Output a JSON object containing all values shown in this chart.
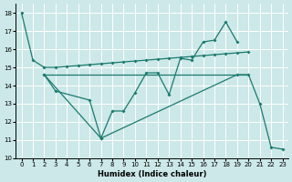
{
  "xlabel": "Humidex (Indice chaleur)",
  "xlim": [
    -0.5,
    23.5
  ],
  "ylim": [
    10,
    18.5
  ],
  "yticks": [
    10,
    11,
    12,
    13,
    14,
    15,
    16,
    17,
    18
  ],
  "xticks": [
    0,
    1,
    2,
    3,
    4,
    5,
    6,
    7,
    8,
    9,
    10,
    11,
    12,
    13,
    14,
    15,
    16,
    17,
    18,
    19,
    20,
    21,
    22,
    23
  ],
  "background_color": "#cce8e8",
  "grid_color": "#ffffff",
  "line_color": "#1a7a6e",
  "line1_x": [
    0,
    1,
    2,
    3,
    4,
    5,
    6,
    7,
    8,
    9,
    10,
    11,
    12,
    13,
    14,
    15,
    16,
    17,
    18,
    19,
    20
  ],
  "line1_y": [
    18.0,
    15.4,
    15.0,
    15.0,
    15.05,
    15.1,
    15.15,
    15.2,
    15.25,
    15.3,
    15.35,
    15.4,
    15.45,
    15.5,
    15.55,
    15.6,
    15.65,
    15.7,
    15.75,
    15.8,
    15.85
  ],
  "line2_x": [
    2,
    3,
    4,
    5,
    6,
    7,
    8,
    9,
    10,
    11,
    12,
    13,
    14,
    15,
    16,
    17,
    18,
    19,
    20
  ],
  "line2_y": [
    14.6,
    14.6,
    14.6,
    14.6,
    14.6,
    14.6,
    14.6,
    14.6,
    14.6,
    14.6,
    14.6,
    14.6,
    14.6,
    14.6,
    14.6,
    14.6,
    14.6,
    14.6,
    14.6
  ],
  "line3_x": [
    2,
    3,
    6,
    7,
    8,
    9,
    10,
    11,
    12,
    13,
    14,
    15,
    16,
    17,
    18,
    19
  ],
  "line3_y": [
    14.6,
    13.7,
    13.2,
    11.1,
    12.6,
    12.6,
    13.6,
    14.7,
    14.7,
    13.5,
    15.5,
    15.4,
    16.4,
    16.5,
    17.5,
    16.4
  ],
  "line4_x": [
    2,
    7,
    19,
    20,
    21,
    22,
    23
  ],
  "line4_y": [
    14.6,
    11.1,
    14.6,
    14.6,
    13.0,
    10.6,
    10.5
  ]
}
